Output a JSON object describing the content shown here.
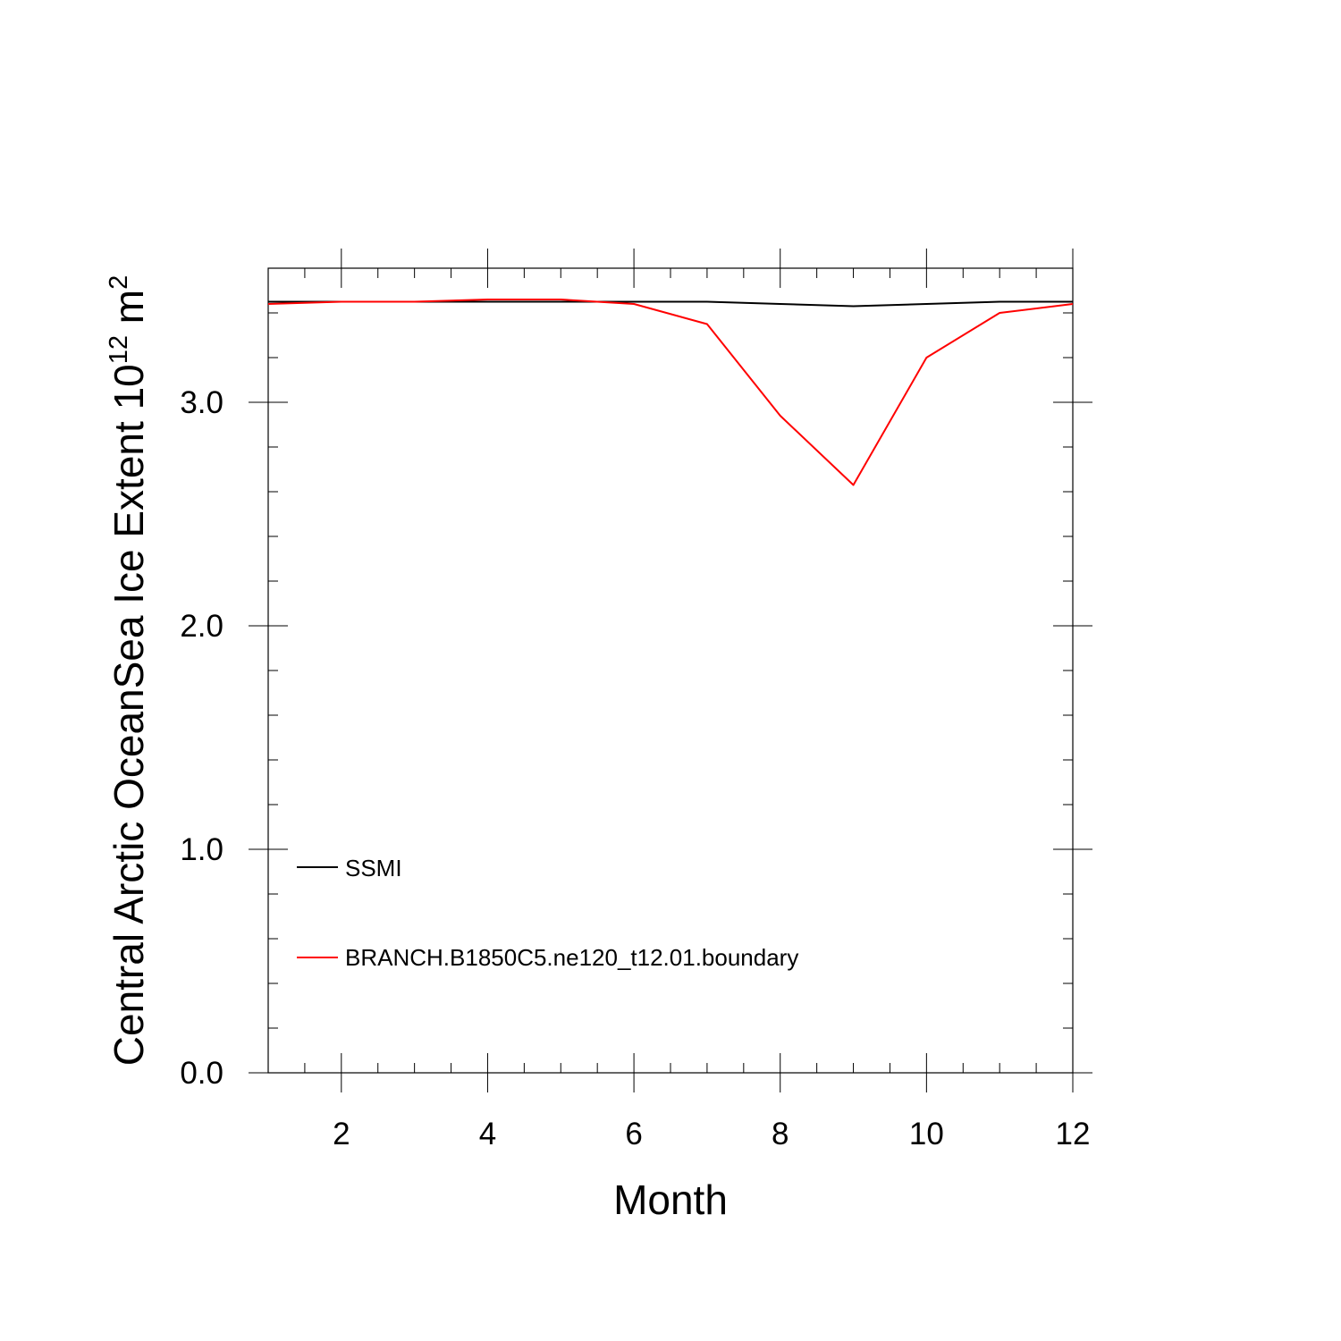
{
  "chart_data": {
    "type": "line",
    "xlabel": "Month",
    "ylabel": {
      "text": "Central Arctic OceanSea Ice Extent 10",
      "exp": "12",
      "unit": " m",
      "unit_exp": "2"
    },
    "xlim": [
      1,
      12
    ],
    "ylim": [
      0,
      3.6
    ],
    "x_ticks": [
      {
        "value": 2,
        "label": "2"
      },
      {
        "value": 4,
        "label": "4"
      },
      {
        "value": 6,
        "label": "6"
      },
      {
        "value": 8,
        "label": "8"
      },
      {
        "value": 10,
        "label": "10"
      },
      {
        "value": 12,
        "label": "12"
      }
    ],
    "y_ticks": [
      {
        "value": 0,
        "label": "0.0"
      },
      {
        "value": 1,
        "label": "1.0"
      },
      {
        "value": 2,
        "label": "2.0"
      },
      {
        "value": 3,
        "label": "3.0"
      }
    ],
    "x_minor_step": 0.5,
    "y_minor_step": 0.2,
    "grid": false,
    "legend_position": "bottom-left",
    "x": [
      1,
      2,
      3,
      4,
      5,
      6,
      7,
      8,
      9,
      10,
      11,
      12
    ],
    "series": [
      {
        "name": "SSMI",
        "color": "#000000",
        "values": [
          3.45,
          3.45,
          3.45,
          3.45,
          3.45,
          3.45,
          3.45,
          3.44,
          3.43,
          3.44,
          3.45,
          3.45
        ]
      },
      {
        "name": "BRANCH.B1850C5.ne120_t12.01.boundary",
        "color": "#ff0000",
        "values": [
          3.44,
          3.45,
          3.45,
          3.46,
          3.46,
          3.44,
          3.35,
          2.94,
          2.63,
          3.2,
          3.4,
          3.44
        ]
      }
    ]
  }
}
